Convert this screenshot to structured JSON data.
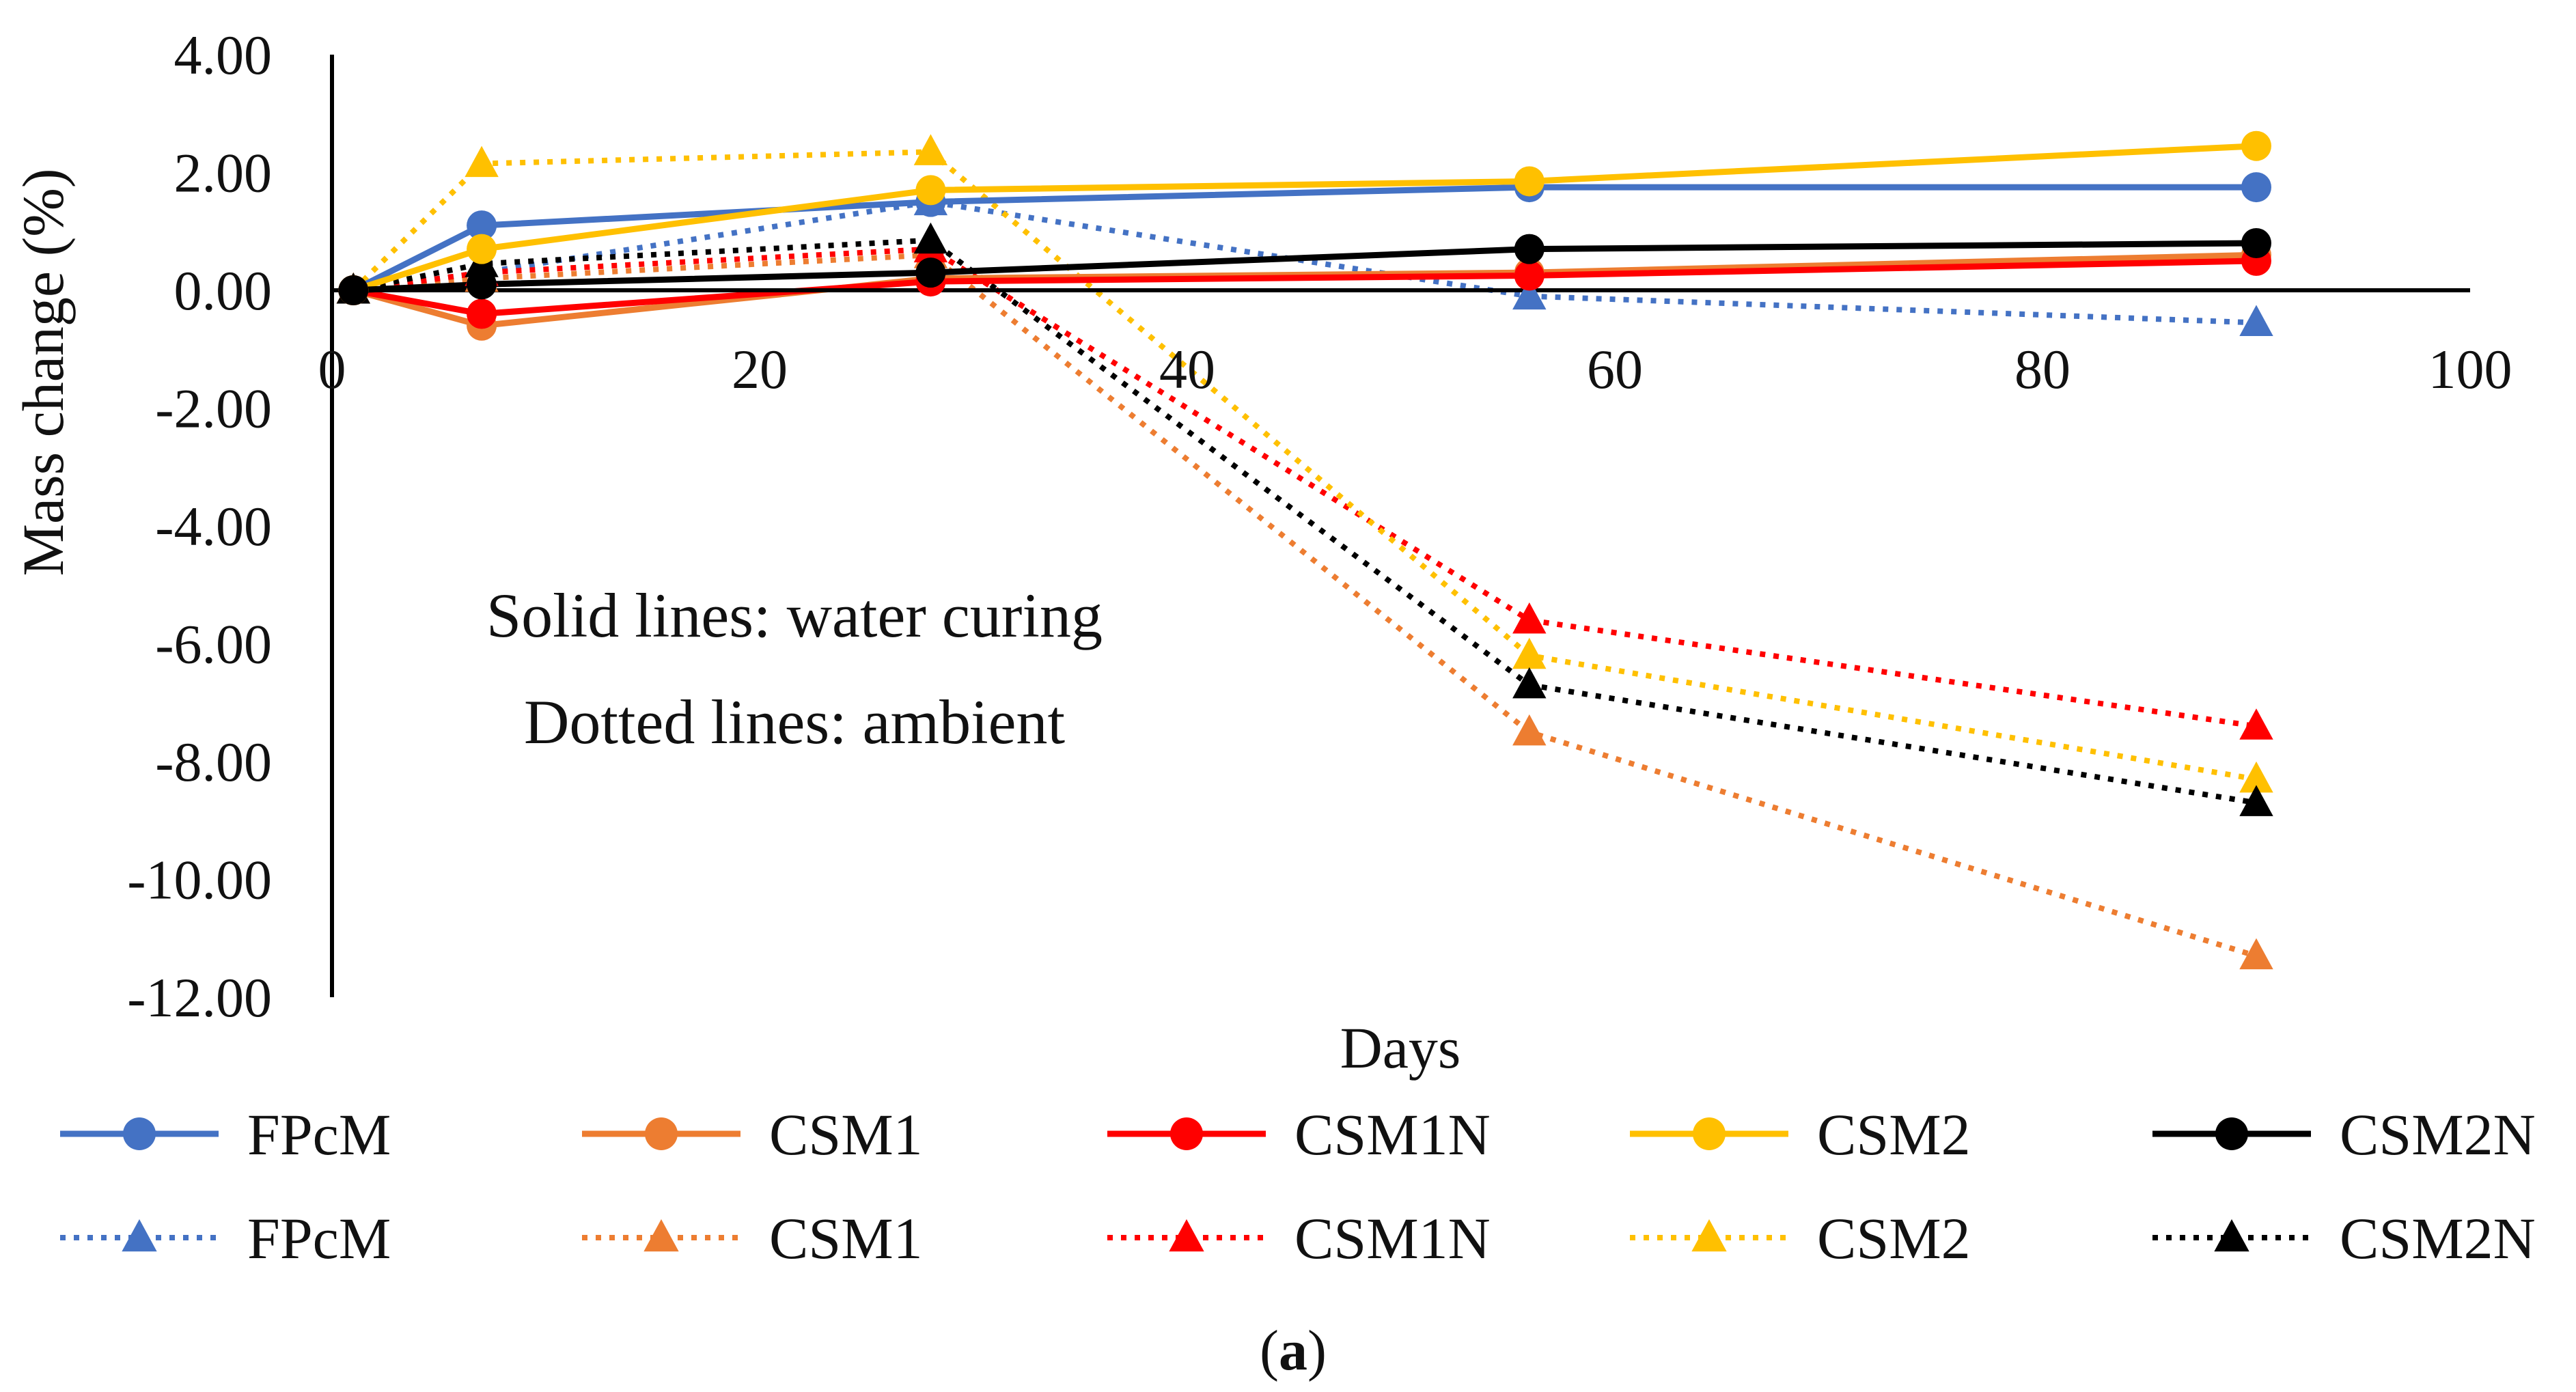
{
  "chart_data": {
    "type": "line",
    "title": "",
    "xlabel": "Days",
    "ylabel": "Mass change (%)",
    "xlim": [
      0,
      100
    ],
    "ylim": [
      -12,
      4
    ],
    "x_ticks": [
      0,
      20,
      40,
      60,
      80,
      100
    ],
    "x_tick_labels": [
      "0",
      "20",
      "40",
      "60",
      "80",
      "100"
    ],
    "y_ticks": [
      4,
      2,
      0,
      -2,
      -4,
      -6,
      -8,
      -10,
      -12
    ],
    "y_tick_labels": [
      "4.00",
      "2.00",
      "0.00",
      "-2.00",
      "-4.00",
      "-6.00",
      "-8.00",
      "-10.00",
      "-12.00"
    ],
    "grid": false,
    "legend_position": "bottom",
    "x": [
      1,
      7,
      28,
      56,
      90
    ],
    "series": [
      {
        "name": "FPcM",
        "style": "solid",
        "marker": "circle",
        "color": "#4472C4",
        "values": [
          0.0,
          1.1,
          1.5,
          1.75,
          1.75
        ]
      },
      {
        "name": "CSM1",
        "style": "solid",
        "marker": "circle",
        "color": "#ED7D31",
        "values": [
          0.0,
          -0.6,
          0.2,
          0.3,
          0.6
        ]
      },
      {
        "name": "CSM1N",
        "style": "solid",
        "marker": "circle",
        "color": "#FF0000",
        "values": [
          0.0,
          -0.4,
          0.15,
          0.25,
          0.5
        ]
      },
      {
        "name": "CSM2",
        "style": "solid",
        "marker": "circle",
        "color": "#FFC000",
        "values": [
          0.0,
          0.7,
          1.7,
          1.85,
          2.45
        ]
      },
      {
        "name": "CSM2N",
        "style": "solid",
        "marker": "circle",
        "color": "#000000",
        "values": [
          0.0,
          0.1,
          0.3,
          0.7,
          0.8
        ]
      },
      {
        "name": "FPcM",
        "style": "dotted",
        "marker": "triangle",
        "color": "#4472C4",
        "values": [
          0.0,
          0.3,
          1.5,
          -0.1,
          -0.55
        ]
      },
      {
        "name": "CSM1",
        "style": "dotted",
        "marker": "triangle",
        "color": "#ED7D31",
        "values": [
          0.0,
          0.2,
          0.6,
          -7.5,
          -11.3
        ]
      },
      {
        "name": "CSM1N",
        "style": "dotted",
        "marker": "triangle",
        "color": "#FF0000",
        "values": [
          0.0,
          0.3,
          0.7,
          -5.6,
          -7.4
        ]
      },
      {
        "name": "CSM2",
        "style": "dotted",
        "marker": "triangle",
        "color": "#FFC000",
        "values": [
          0.0,
          2.15,
          2.35,
          -6.2,
          -8.3
        ]
      },
      {
        "name": "CSM2N",
        "style": "dotted",
        "marker": "triangle",
        "color": "#000000",
        "values": [
          0.0,
          0.45,
          0.85,
          -6.7,
          -8.7
        ]
      }
    ],
    "annotations": [
      "Solid lines: water curing",
      "Dotted lines: ambient"
    ],
    "caption": {
      "prefix": "(",
      "bold": "a",
      "suffix": ")"
    }
  }
}
